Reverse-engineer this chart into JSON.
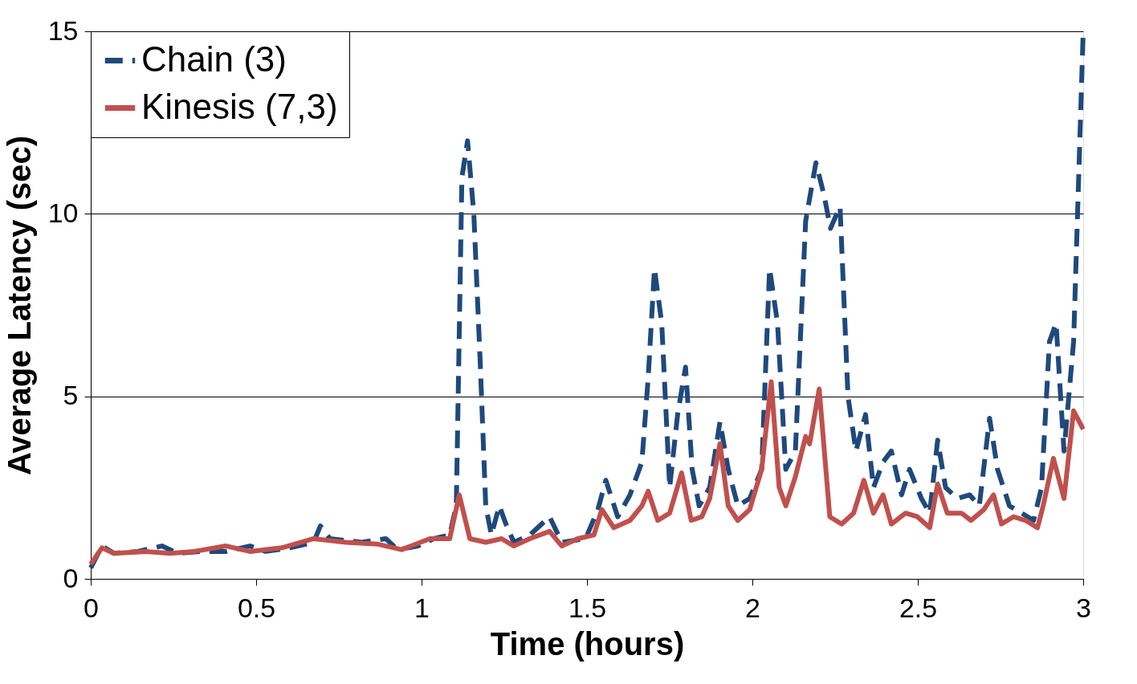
{
  "chart_data": {
    "type": "line",
    "xlabel": "Time (hours)",
    "ylabel": "Average Latency (sec)",
    "xlim": [
      0,
      3
    ],
    "xticks": [
      0,
      0.5,
      1,
      1.5,
      2,
      2.5,
      3
    ],
    "ylim": [
      0,
      15
    ],
    "yticks": [
      0,
      5,
      10,
      15
    ],
    "grid": "y",
    "legend": "top left",
    "series": [
      {
        "name": "Chain (3)",
        "color": "#1f497d",
        "line_style": "dashed",
        "x": [
          0,
          0.034,
          0.07,
          0.143,
          0.215,
          0.263,
          0.336,
          0.409,
          0.481,
          0.529,
          0.602,
          0.674,
          0.694,
          0.723,
          0.819,
          0.892,
          0.928,
          0.989,
          1.037,
          1.085,
          1.105,
          1.122,
          1.139,
          1.158,
          1.177,
          1.194,
          1.211,
          1.235,
          1.255,
          1.279,
          1.327,
          1.387,
          1.424,
          1.496,
          1.533,
          1.557,
          1.593,
          1.63,
          1.666,
          1.685,
          1.704,
          1.726,
          1.75,
          1.774,
          1.798,
          1.818,
          1.839,
          1.871,
          1.902,
          1.927,
          1.956,
          1.992,
          2.028,
          2.052,
          2.076,
          2.101,
          2.13,
          2.161,
          2.192,
          2.217,
          2.236,
          2.265,
          2.289,
          2.313,
          2.342,
          2.366,
          2.395,
          2.42,
          2.451,
          2.475,
          2.511,
          2.536,
          2.56,
          2.584,
          2.62,
          2.657,
          2.686,
          2.717,
          2.741,
          2.777,
          2.814,
          2.85,
          2.874,
          2.898,
          2.918,
          2.942,
          2.971,
          3
        ],
        "values": [
          0.3,
          0.9,
          0.7,
          0.75,
          0.9,
          0.7,
          0.75,
          0.75,
          0.9,
          0.75,
          0.85,
          1.0,
          1.45,
          1.1,
          1.0,
          1.1,
          0.8,
          0.9,
          1.1,
          1.2,
          2.0,
          11.0,
          12.0,
          10.0,
          6.0,
          2.0,
          1.2,
          2.0,
          1.5,
          1.0,
          1.2,
          1.7,
          1.0,
          1.1,
          1.9,
          2.7,
          1.7,
          2.3,
          3.2,
          5.5,
          8.5,
          7.0,
          2.5,
          4.5,
          5.8,
          3.0,
          2.0,
          2.5,
          4.3,
          3.0,
          2.0,
          2.2,
          3.0,
          8.5,
          7.0,
          3.0,
          3.5,
          9.8,
          11.4,
          10.5,
          9.6,
          10.2,
          5.0,
          3.5,
          4.5,
          2.5,
          3.2,
          3.5,
          2.3,
          3.0,
          2.2,
          1.8,
          3.8,
          2.5,
          2.2,
          2.3,
          2.0,
          4.4,
          3.0,
          2.0,
          1.8,
          1.6,
          2.5,
          6.5,
          7.0,
          3.5,
          6.5,
          15
        ]
      },
      {
        "name": "Kinesis (7,3)",
        "color": "#c0504d",
        "line_style": "solid",
        "x": [
          0,
          0.034,
          0.07,
          0.167,
          0.239,
          0.312,
          0.409,
          0.481,
          0.578,
          0.674,
          0.771,
          0.868,
          0.94,
          1.025,
          1.085,
          1.114,
          1.146,
          1.194,
          1.242,
          1.279,
          1.327,
          1.387,
          1.424,
          1.472,
          1.521,
          1.545,
          1.581,
          1.63,
          1.666,
          1.685,
          1.714,
          1.75,
          1.786,
          1.815,
          1.847,
          1.871,
          1.902,
          1.927,
          1.956,
          1.992,
          2.028,
          2.057,
          2.081,
          2.101,
          2.13,
          2.161,
          2.173,
          2.202,
          2.234,
          2.27,
          2.306,
          2.337,
          2.366,
          2.395,
          2.42,
          2.463,
          2.499,
          2.536,
          2.56,
          2.589,
          2.632,
          2.661,
          2.7,
          2.729,
          2.753,
          2.789,
          2.826,
          2.862,
          2.879,
          2.91,
          2.942,
          2.971,
          3
        ],
        "values": [
          0.4,
          0.85,
          0.7,
          0.75,
          0.7,
          0.75,
          0.9,
          0.75,
          0.85,
          1.1,
          1.0,
          0.95,
          0.8,
          1.1,
          1.1,
          2.3,
          1.1,
          1.0,
          1.1,
          0.9,
          1.1,
          1.3,
          0.9,
          1.1,
          1.2,
          1.9,
          1.4,
          1.6,
          2.0,
          2.4,
          1.6,
          1.8,
          2.9,
          1.6,
          1.7,
          2.2,
          3.7,
          2.0,
          1.6,
          1.9,
          3.0,
          5.4,
          2.5,
          2.0,
          2.8,
          3.9,
          3.7,
          5.2,
          1.7,
          1.5,
          1.8,
          2.7,
          1.8,
          2.3,
          1.5,
          1.8,
          1.7,
          1.4,
          2.6,
          1.8,
          1.8,
          1.6,
          1.9,
          2.3,
          1.5,
          1.7,
          1.6,
          1.4,
          2.0,
          3.3,
          2.2,
          4.6,
          4.1
        ]
      }
    ]
  }
}
